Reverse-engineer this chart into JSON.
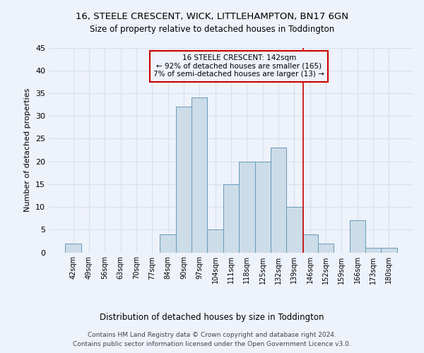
{
  "title1": "16, STEELE CRESCENT, WICK, LITTLEHAMPTON, BN17 6GN",
  "title2": "Size of property relative to detached houses in Toddington",
  "xlabel": "Distribution of detached houses by size in Toddington",
  "ylabel": "Number of detached properties",
  "categories": [
    "42sqm",
    "49sqm",
    "56sqm",
    "63sqm",
    "70sqm",
    "77sqm",
    "84sqm",
    "90sqm",
    "97sqm",
    "104sqm",
    "111sqm",
    "118sqm",
    "125sqm",
    "132sqm",
    "139sqm",
    "146sqm",
    "152sqm",
    "159sqm",
    "166sqm",
    "173sqm",
    "180sqm"
  ],
  "values": [
    2,
    0,
    0,
    0,
    0,
    0,
    4,
    32,
    34,
    5,
    15,
    20,
    20,
    23,
    10,
    4,
    2,
    0,
    7,
    1,
    1
  ],
  "bar_color": "#ccdce8",
  "bar_edge_color": "#6699bb",
  "grid_color": "#d8e0ee",
  "vline_x_index": 14.57,
  "vline_color": "#cc0000",
  "annotation_title": "16 STEELE CRESCENT: 142sqm",
  "annotation_line1": "← 92% of detached houses are smaller (165)",
  "annotation_line2": "7% of semi-detached houses are larger (13) →",
  "annotation_box_color": "#cc0000",
  "ylim": [
    0,
    45
  ],
  "yticks": [
    0,
    5,
    10,
    15,
    20,
    25,
    30,
    35,
    40,
    45
  ],
  "footnote1": "Contains HM Land Registry data © Crown copyright and database right 2024.",
  "footnote2": "Contains public sector information licensed under the Open Government Licence v3.0.",
  "bg_color": "#eef2fa"
}
